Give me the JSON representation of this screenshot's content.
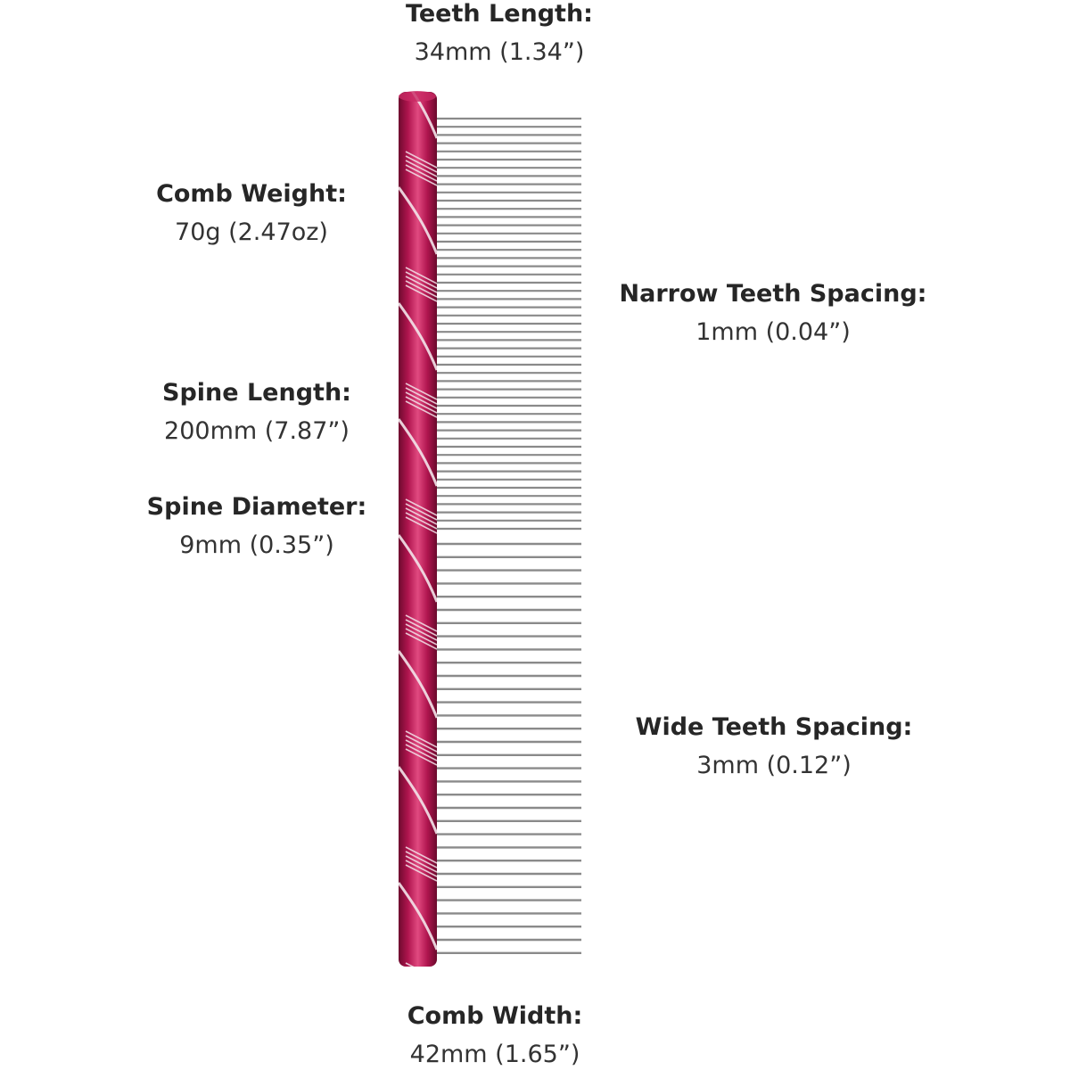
{
  "specs": {
    "teeth_length": {
      "label": "Teeth Length:",
      "value": "34mm (1.34”)"
    },
    "comb_weight": {
      "label": "Comb Weight:",
      "value": "70g (2.47oz)"
    },
    "narrow_spacing": {
      "label": "Narrow Teeth Spacing:",
      "value": "1mm (0.04”)"
    },
    "spine_length": {
      "label": "Spine Length:",
      "value": "200mm (7.87”)"
    },
    "spine_diameter": {
      "label": "Spine Diameter:",
      "value": "9mm (0.35”)"
    },
    "wide_spacing": {
      "label": "Wide Teeth Spacing:",
      "value": "3mm (0.12”)"
    },
    "comb_width": {
      "label": "Comb Width:",
      "value": "42mm (1.65”)"
    }
  },
  "colors": {
    "spine": "#b0154f",
    "spine_dark": "#7a0b33",
    "spine_light": "#e0467e",
    "stripe": "#f3e4ea",
    "tooth": "#8a8a8a"
  },
  "icons": {
    "comb": "comb-illustration"
  }
}
